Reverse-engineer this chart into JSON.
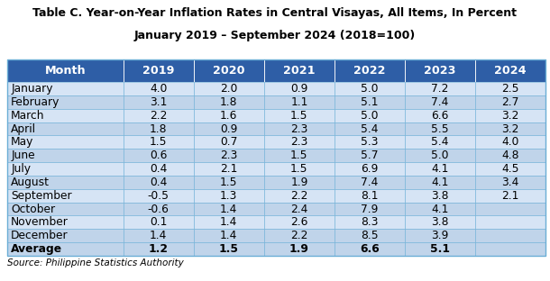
{
  "title_line1": "Table C. Year-on-Year Inflation Rates in Central Visayas, All Items, In Percent",
  "title_line2": "January 2019 – September 2024 (2018=100)",
  "source": "Source: Philippine Statistics Authority",
  "columns": [
    "Month",
    "2019",
    "2020",
    "2021",
    "2022",
    "2023",
    "2024"
  ],
  "rows": [
    [
      "January",
      "4.0",
      "2.0",
      "0.9",
      "5.0",
      "7.2",
      "2.5"
    ],
    [
      "February",
      "3.1",
      "1.8",
      "1.1",
      "5.1",
      "7.4",
      "2.7"
    ],
    [
      "March",
      "2.2",
      "1.6",
      "1.5",
      "5.0",
      "6.6",
      "3.2"
    ],
    [
      "April",
      "1.8",
      "0.9",
      "2.3",
      "5.4",
      "5.5",
      "3.2"
    ],
    [
      "May",
      "1.5",
      "0.7",
      "2.3",
      "5.3",
      "5.4",
      "4.0"
    ],
    [
      "June",
      "0.6",
      "2.3",
      "1.5",
      "5.7",
      "5.0",
      "4.8"
    ],
    [
      "July",
      "0.4",
      "2.1",
      "1.5",
      "6.9",
      "4.1",
      "4.5"
    ],
    [
      "August",
      "0.4",
      "1.5",
      "1.9",
      "7.4",
      "4.1",
      "3.4"
    ],
    [
      "September",
      "-0.5",
      "1.3",
      "2.2",
      "8.1",
      "3.8",
      "2.1"
    ],
    [
      "October",
      "-0.6",
      "1.4",
      "2.4",
      "7.9",
      "4.1",
      ""
    ],
    [
      "November",
      "0.1",
      "1.4",
      "2.6",
      "8.3",
      "3.8",
      ""
    ],
    [
      "December",
      "1.4",
      "1.4",
      "2.2",
      "8.5",
      "3.9",
      ""
    ],
    [
      "Average",
      "1.2",
      "1.5",
      "1.9",
      "6.6",
      "5.1",
      ""
    ]
  ],
  "header_bg": "#2E5EA6",
  "header_fg": "#FFFFFF",
  "row_bg_light": "#D6E4F5",
  "row_bg_dark": "#C0D4EA",
  "avg_bg": "#C0D4EA",
  "border_color": "#6BAED6",
  "title_fontsize": 9.0,
  "header_fontsize": 9.2,
  "cell_fontsize": 8.8,
  "source_fontsize": 7.5
}
